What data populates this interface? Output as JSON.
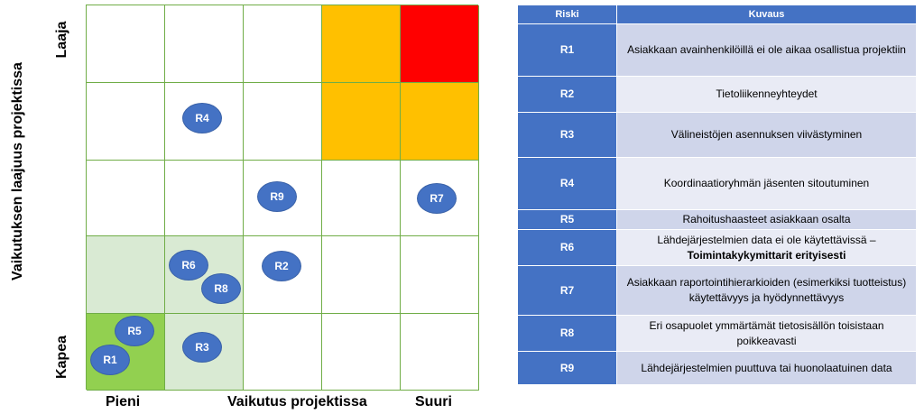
{
  "matrix": {
    "y_axis_label": "Vaikutuksen laajuus projektissa",
    "y_top": "Laaja",
    "y_bottom": "Kapea",
    "x_left": "Pieni",
    "x_center": "Vaikutus projektissa",
    "x_right": "Suuri",
    "colors": {
      "red": "#ff0000",
      "orange": "#ffc000",
      "light_green": "#d9ead3",
      "green": "#92d050",
      "white": "#ffffff",
      "grid": "#70ad47",
      "bubble": "#4472c4"
    },
    "cell_colors": [
      [
        "white",
        "white",
        "white",
        "orange",
        "red"
      ],
      [
        "white",
        "white",
        "white",
        "orange",
        "orange"
      ],
      [
        "white",
        "white",
        "white",
        "white",
        "white"
      ],
      [
        "light_green",
        "light_green",
        "white",
        "white",
        "white"
      ],
      [
        "green",
        "light_green",
        "white",
        "white",
        "white"
      ]
    ],
    "bubbles": [
      {
        "label": "R4"
      },
      {
        "label": "R9"
      },
      {
        "label": "R7"
      },
      {
        "label": "R6"
      },
      {
        "label": "R8"
      },
      {
        "label": "R2"
      },
      {
        "label": "R5"
      },
      {
        "label": "R1"
      },
      {
        "label": "R3"
      }
    ]
  },
  "table": {
    "col_risk": "Riski",
    "col_desc": "Kuvaus",
    "rows": [
      {
        "id": "R1",
        "desc": "Asiakkaan avainhenkilöillä ei ole aikaa osallistua projektiin"
      },
      {
        "id": "R2",
        "desc": "Tietoliikenneyhteydet"
      },
      {
        "id": "R3",
        "desc": "Välineistöjen asennuksen viivästyminen"
      },
      {
        "id": "R4",
        "desc": "Koordinaatioryhmän jäsenten sitoutuminen"
      },
      {
        "id": "R5",
        "desc": "Rahoitushaasteet asiakkaan osalta"
      },
      {
        "id": "R6",
        "desc": "Lähdejärjestelmien data ei ole käytettävissä –",
        "desc_bold": "Toimintakykymittarit erityisesti"
      },
      {
        "id": "R7",
        "desc": "Asiakkaan raportointihierarkioiden (esimerkiksi tuotteistus) käytettävyys ja hyödynnettävyys"
      },
      {
        "id": "R8",
        "desc": "Eri osapuolet ymmärtämät tietosisällön toisistaan poikkeavasti"
      },
      {
        "id": "R9",
        "desc": "Lähdejärjestelmien puuttuva tai huonolaatuinen data"
      }
    ]
  }
}
